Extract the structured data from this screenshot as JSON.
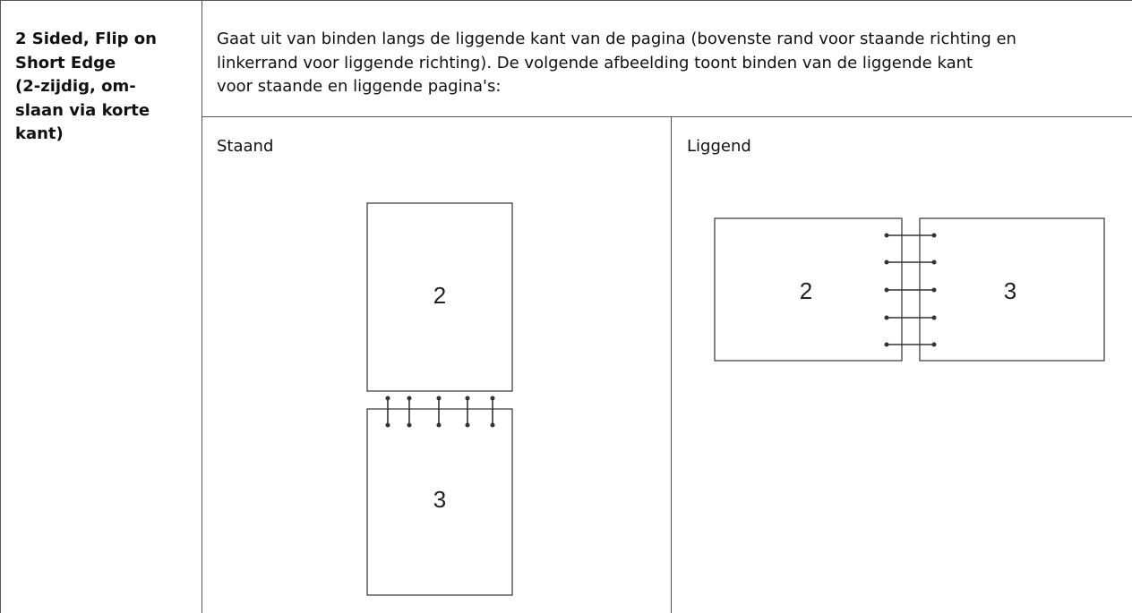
{
  "row_label_lines": [
    "2 Sided, Flip on",
    "Short Edge",
    "(2-zijdig, om-",
    "slaan via korte",
    "kant)"
  ],
  "description_lines": [
    "Gaat uit van binden langs de liggende kant van de pagina (bovenste rand voor staande richting en",
    "linkerrand voor liggende richting). De volgende afbeelding toont binden van de liggende kant",
    "voor staande en liggende pagina's:"
  ],
  "portrait": {
    "label": "Staand",
    "pages": [
      "2",
      "3"
    ]
  },
  "landscape": {
    "label": "Liggend",
    "pages": [
      "2",
      "3"
    ]
  }
}
